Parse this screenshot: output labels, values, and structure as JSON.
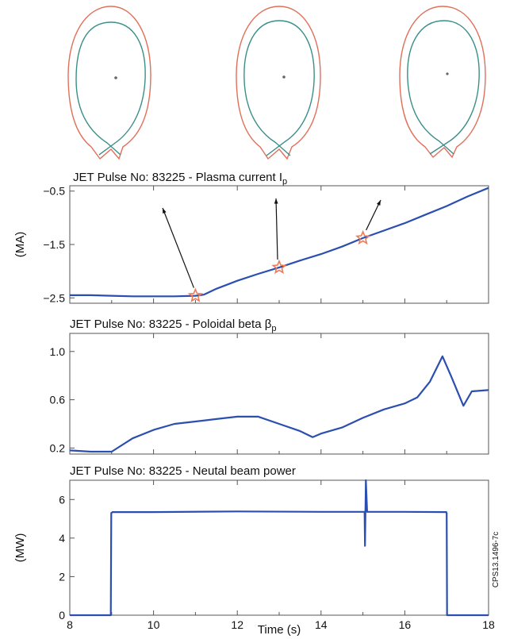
{
  "colors": {
    "series": "#2b4fb0",
    "marker": "#ee7a55",
    "wall": "#e0705a",
    "separatrix": "#3a8f88"
  },
  "credit": "CPS13.1496-7c",
  "x_axis": {
    "label": "Time (s)",
    "range": [
      8,
      18
    ],
    "ticks": [
      "8",
      "10",
      "12",
      "14",
      "16",
      "18"
    ]
  },
  "chart_data": [
    {
      "type": "line",
      "title": "JET Pulse No: 83225 - Plasma current I",
      "title_subscript": "p",
      "ylabel": "(MA)",
      "xlim": [
        8,
        18
      ],
      "ylim": [
        -2.6,
        -0.4
      ],
      "yticks": [
        "-2.5",
        "-1.5",
        "-0.5"
      ],
      "grid": "vertical",
      "markers": [
        {
          "x": 11.0,
          "y": -2.46
        },
        {
          "x": 13.0,
          "y": -1.93
        },
        {
          "x": 15.0,
          "y": -1.38
        }
      ],
      "series": [
        {
          "x": [
            8,
            8.5,
            9,
            9.5,
            10,
            10.5,
            11,
            11.2,
            11.5,
            12,
            12.5,
            13,
            13.5,
            14,
            14.5,
            15,
            15.5,
            16,
            16.5,
            17,
            17.5,
            18
          ],
          "values": [
            -2.45,
            -2.45,
            -2.46,
            -2.47,
            -2.47,
            -2.47,
            -2.46,
            -2.44,
            -2.33,
            -2.18,
            -2.05,
            -1.93,
            -1.8,
            -1.68,
            -1.54,
            -1.38,
            -1.24,
            -1.1,
            -0.94,
            -0.78,
            -0.6,
            -0.44
          ]
        }
      ]
    },
    {
      "type": "line",
      "title": "JET Pulse No: 83225 - Poloidal beta β",
      "title_subscript": "p",
      "ylabel": "",
      "xlim": [
        8,
        18
      ],
      "ylim": [
        0.15,
        1.15
      ],
      "yticks": [
        "0.2",
        "0.6",
        "1.0"
      ],
      "grid": "vertical",
      "series": [
        {
          "x": [
            8,
            8.5,
            9,
            9.5,
            10,
            10.5,
            11,
            11.5,
            12,
            12.5,
            13,
            13.5,
            13.8,
            14,
            14.5,
            15,
            15.5,
            16,
            16.3,
            16.6,
            16.9,
            17.1,
            17.4,
            17.6,
            18
          ],
          "values": [
            0.18,
            0.17,
            0.17,
            0.28,
            0.35,
            0.4,
            0.42,
            0.44,
            0.46,
            0.46,
            0.4,
            0.34,
            0.29,
            0.32,
            0.37,
            0.45,
            0.52,
            0.57,
            0.62,
            0.75,
            0.96,
            0.8,
            0.55,
            0.67,
            0.68
          ]
        }
      ]
    },
    {
      "type": "line",
      "title": "JET Pulse No: 83225 - Neutal beam power",
      "title_subscript": "",
      "ylabel": "(MW)",
      "xlim": [
        8,
        18
      ],
      "ylim": [
        0,
        7
      ],
      "yticks": [
        "0",
        "2",
        "4",
        "6"
      ],
      "grid": "vertical",
      "series": [
        {
          "x": [
            8,
            8.98,
            8.99,
            9.02,
            10,
            12,
            14,
            15.0,
            15.04,
            15.05,
            15.07,
            15.1,
            15.11,
            15.13,
            16,
            16.99,
            17.0,
            17.01,
            18
          ],
          "values": [
            0,
            0,
            5.3,
            5.35,
            5.35,
            5.38,
            5.36,
            5.36,
            5.36,
            3.6,
            7.0,
            5.36,
            5.36,
            5.36,
            5.36,
            5.35,
            5.3,
            0,
            0
          ]
        }
      ]
    }
  ]
}
